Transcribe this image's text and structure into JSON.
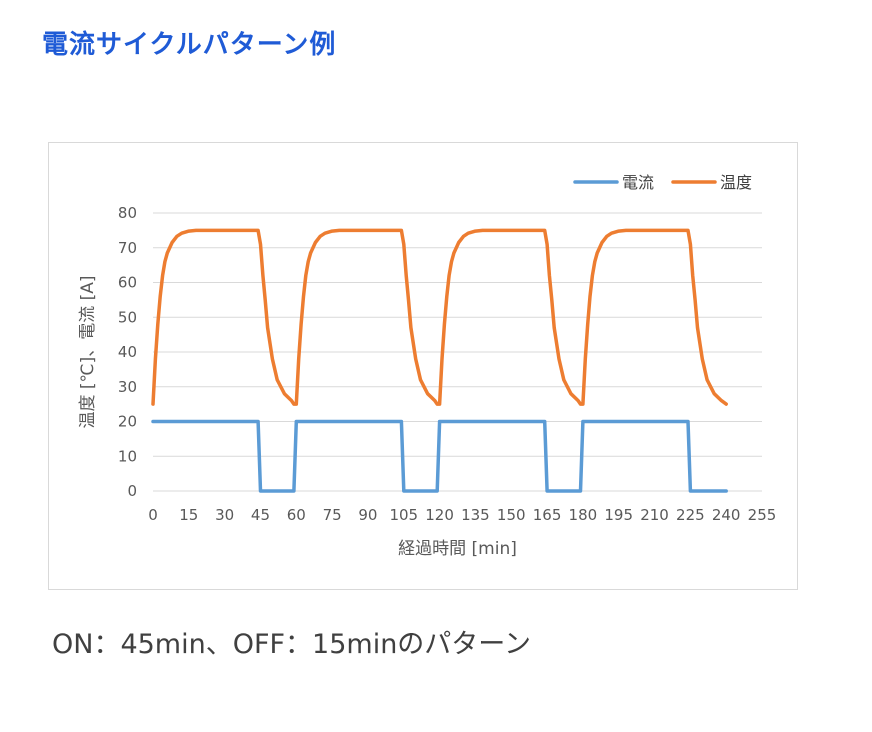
{
  "page": {
    "title": "電流サイクルパターン例",
    "caption": "ON：45min、OFF：15minのパターン"
  },
  "chart_data": {
    "type": "line",
    "xlabel": "経過時間 [min]",
    "ylabel": "温度 [℃]、電流 [A]",
    "xlim": [
      0,
      255
    ],
    "ylim": [
      0,
      80
    ],
    "x_ticks": [
      0,
      15,
      30,
      45,
      60,
      75,
      90,
      105,
      120,
      135,
      150,
      165,
      180,
      195,
      210,
      225,
      240,
      255
    ],
    "y_ticks": [
      0,
      10,
      20,
      30,
      40,
      50,
      60,
      70,
      80
    ],
    "grid": true,
    "legend_position": "top-right",
    "series": [
      {
        "name": "電流",
        "color": "#5b9bd5",
        "x": [
          0,
          44,
          45,
          59,
          60,
          104,
          105,
          119,
          120,
          164,
          165,
          179,
          180,
          224,
          225,
          240
        ],
        "y": [
          20,
          20,
          0,
          0,
          20,
          20,
          0,
          0,
          20,
          20,
          0,
          0,
          20,
          20,
          0,
          0
        ]
      },
      {
        "name": "温度",
        "color": "#ed7d31",
        "x": [
          0,
          1,
          2,
          3,
          4,
          5,
          6,
          8,
          10,
          12,
          15,
          18,
          20,
          30,
          44,
          45,
          46,
          47,
          48,
          50,
          52,
          55,
          58,
          59,
          60,
          61,
          62,
          63,
          64,
          65,
          66,
          68,
          70,
          72,
          75,
          78,
          80,
          90,
          104,
          105,
          106,
          107,
          108,
          110,
          112,
          115,
          118,
          119,
          120,
          121,
          122,
          123,
          124,
          125,
          126,
          128,
          130,
          132,
          135,
          138,
          140,
          150,
          164,
          165,
          166,
          167,
          168,
          170,
          172,
          175,
          178,
          179,
          180,
          181,
          182,
          183,
          184,
          185,
          186,
          188,
          190,
          192,
          195,
          198,
          200,
          210,
          224,
          225,
          226,
          227,
          228,
          230,
          232,
          235,
          238,
          240
        ],
        "y": [
          25,
          38,
          48,
          56,
          62,
          66,
          68.5,
          71.5,
          73.3,
          74.2,
          74.8,
          75,
          75,
          75,
          75,
          71,
          62,
          55,
          47,
          38,
          32,
          28,
          26,
          25,
          25,
          38,
          48,
          56,
          62,
          66,
          68.5,
          71.5,
          73.3,
          74.2,
          74.8,
          75,
          75,
          75,
          75,
          71,
          62,
          55,
          47,
          38,
          32,
          28,
          26,
          25,
          25,
          38,
          48,
          56,
          62,
          66,
          68.5,
          71.5,
          73.3,
          74.2,
          74.8,
          75,
          75,
          75,
          75,
          71,
          62,
          55,
          47,
          38,
          32,
          28,
          26,
          25,
          25,
          38,
          48,
          56,
          62,
          66,
          68.5,
          71.5,
          73.3,
          74.2,
          74.8,
          75,
          75,
          75,
          75,
          71,
          62,
          55,
          47,
          38,
          32,
          28,
          26,
          25
        ]
      }
    ]
  }
}
